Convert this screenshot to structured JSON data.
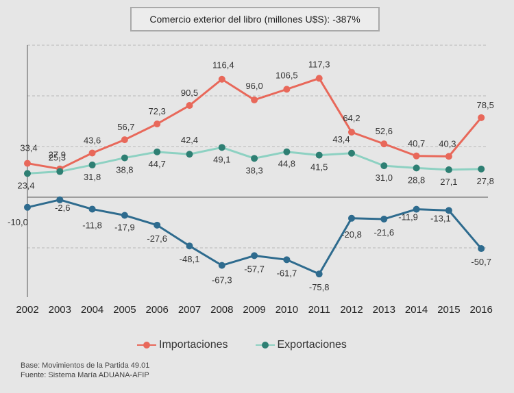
{
  "title": "Comercio exterior del libro (millones U$S): -387%",
  "legend": {
    "importaciones": "Importaciones",
    "exportaciones": "Exportaciones"
  },
  "notes": {
    "base": "Base: Movimientos de la Partida 49.01",
    "fuente": "Fuente: Sistema María ADUANA-AFIP"
  },
  "colors": {
    "importaciones": "#e8685a",
    "exportaciones": "#8dd1c2",
    "balance": "#2e6b8e"
  },
  "chart_data": {
    "type": "line",
    "x": [
      "2002",
      "2003",
      "2004",
      "2005",
      "2006",
      "2007",
      "2008",
      "2009",
      "2010",
      "2011",
      "2012",
      "2013",
      "2014",
      "2015",
      "2016"
    ],
    "ylim": [
      -100,
      150
    ],
    "grid": true,
    "legend_position": "bottom",
    "series": [
      {
        "key": "importaciones",
        "name": "Importaciones",
        "values": [
          33.4,
          27.9,
          43.6,
          56.7,
          72.3,
          90.5,
          116.4,
          96.0,
          106.5,
          117.3,
          64.2,
          52.6,
          40.7,
          40.3,
          78.5
        ],
        "labels": [
          "33,4",
          "27,9",
          "43,6",
          "56,7",
          "72,3",
          "90,5",
          "116,4",
          "96,0",
          "106,5",
          "117,3",
          "64,2",
          "52,6",
          "40,7",
          "40,3",
          "78,5"
        ]
      },
      {
        "key": "exportaciones",
        "name": "Exportaciones",
        "values": [
          23.4,
          25.3,
          31.8,
          38.8,
          44.7,
          42.4,
          49.1,
          38.3,
          44.8,
          41.5,
          43.4,
          31.0,
          28.8,
          27.1,
          27.8
        ],
        "labels": [
          "23,4",
          "25,3",
          "31,8",
          "38,8",
          "44,7",
          "42,4",
          "49,1",
          "38,3",
          "44,8",
          "41,5",
          "43,4",
          "31,0",
          "28,8",
          "27,1",
          "27,8"
        ]
      },
      {
        "key": "balance",
        "values": [
          -10.0,
          -2.6,
          -11.8,
          -17.9,
          -27.6,
          -48.1,
          -67.3,
          -57.7,
          -61.7,
          -75.8,
          -20.8,
          -21.6,
          -11.9,
          -13.1,
          -50.7
        ],
        "labels": [
          "-10,0",
          "-2,6",
          "-11,8",
          "-17,9",
          "-27,6",
          "-48,1",
          "-67,3",
          "-57,7",
          "-61,7",
          "-75,8",
          "-20,8",
          "-21,6",
          "-11,9",
          "-13,1",
          "-50,7"
        ]
      }
    ]
  }
}
